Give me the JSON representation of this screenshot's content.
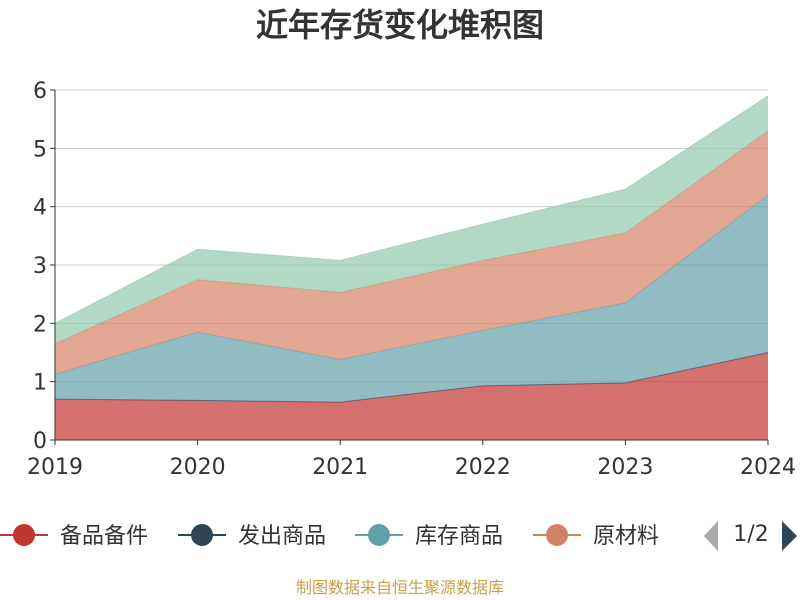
{
  "chart_data": {
    "type": "area",
    "stacked": true,
    "title": "近年存货变化堆积图",
    "x": [
      "2019",
      "2020",
      "2021",
      "2022",
      "2023",
      "2024"
    ],
    "ylim": [
      0,
      6
    ],
    "yticks": [
      "0",
      "1",
      "2",
      "3",
      "4",
      "5",
      "6"
    ],
    "grid": true,
    "legend_position": "bottom",
    "series": [
      {
        "name": "备品备件",
        "values": [
          0.7,
          0.68,
          0.65,
          0.93,
          0.98,
          1.5
        ],
        "color": "#c23531"
      },
      {
        "name": "发出商品",
        "values": [
          0,
          0,
          0,
          0,
          0,
          0
        ],
        "color": "#2f4554"
      },
      {
        "name": "库存商品",
        "values": [
          0.43,
          1.17,
          0.73,
          0.95,
          1.37,
          2.7
        ],
        "color": "#61a0a8"
      },
      {
        "name": "原材料",
        "values": [
          0.52,
          0.9,
          1.15,
          1.2,
          1.2,
          1.1
        ],
        "color": "#d48265"
      },
      {
        "name": "",
        "values": [
          0.35,
          0.52,
          0.55,
          0.62,
          0.75,
          0.6
        ],
        "color": "#91c7ae"
      }
    ],
    "legend_items": [
      {
        "name": "备品备件",
        "color": "#c23531"
      },
      {
        "name": "发出商品",
        "color": "#2f4554"
      },
      {
        "name": "库存商品",
        "color": "#61a0a8"
      },
      {
        "name": "原材料",
        "color": "#d48265"
      }
    ]
  },
  "legend_page": "1/2",
  "legend_prev_icon": "triangle-left-icon",
  "legend_next_icon": "triangle-right-icon",
  "source_text": "制图数据来自恒生聚源数据库"
}
